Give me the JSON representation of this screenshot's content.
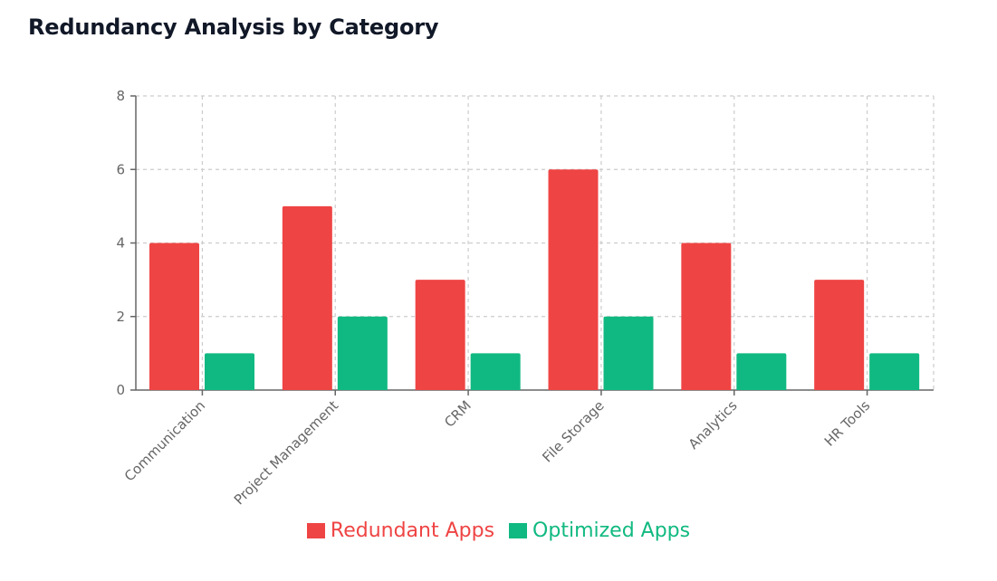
{
  "title": "Redundancy Analysis by Category",
  "chart_data": {
    "type": "bar",
    "categories": [
      "Communication",
      "Project Management",
      "CRM",
      "File Storage",
      "Analytics",
      "HR Tools"
    ],
    "series": [
      {
        "name": "Redundant Apps",
        "color": "#ef4444",
        "values": [
          4,
          5,
          3,
          6,
          4,
          3
        ]
      },
      {
        "name": "Optimized Apps",
        "color": "#10b981",
        "values": [
          1,
          2,
          1,
          2,
          1,
          1
        ]
      }
    ],
    "y_ticks": [
      "0",
      "2",
      "4",
      "6",
      "8"
    ],
    "ylim": [
      0,
      8
    ],
    "grid": true,
    "legend_position": "bottom"
  }
}
